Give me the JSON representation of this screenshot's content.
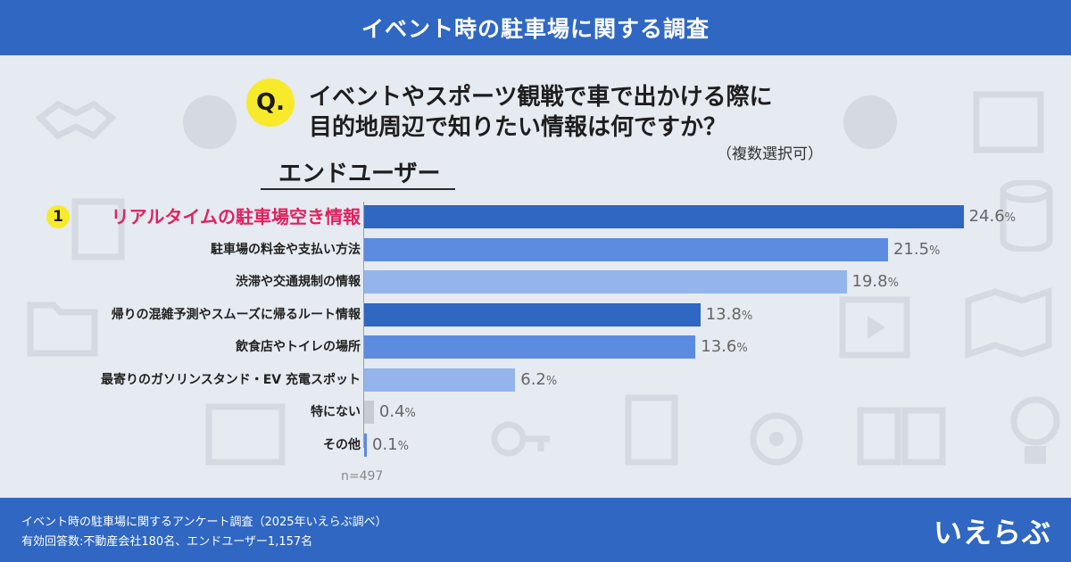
{
  "header": {
    "title": "イベント時の駐車場に関する調査"
  },
  "question": {
    "badge": "Q.",
    "line1": "イベントやスポーツ観戦で車で出かける際に",
    "line2": "目的地周辺で知りたい情報は何ですか？",
    "note": "（複数選択可）"
  },
  "section": {
    "title": "エンドユーザー"
  },
  "rank_badge": "1",
  "sample": "n=497",
  "colors": {
    "header": "#2f67c2",
    "bar_dark": "#2f67c2",
    "bar_mid": "#5b8ce0",
    "bar_light": "#93b5ec",
    "bar_gray": "#c8ccd2",
    "highlight_text": "#e0215f",
    "badge": "#f7ea2a"
  },
  "chart_data": {
    "type": "bar",
    "orientation": "horizontal",
    "categories": [
      "リアルタイムの駐車場空き情報",
      "駐車場の料金や支払い方法",
      "渋滞や交通規制の情報",
      "帰りの混雑予測やスムーズに帰るルート情報",
      "飲食店やトイレの場所",
      "最寄りのガソリンスタンド・EV 充電スポット",
      "特にない",
      "その他"
    ],
    "values": [
      24.6,
      21.5,
      19.8,
      13.8,
      13.6,
      6.2,
      0.4,
      0.1
    ],
    "value_labels": [
      "24.6",
      "21.5",
      "19.8",
      "13.8",
      "13.6",
      "6.2",
      "0.4",
      "0.1"
    ],
    "unit": "%",
    "bar_colors": [
      "dark",
      "mid",
      "light",
      "dark",
      "mid",
      "light",
      "gray",
      "mid"
    ],
    "xlim": [
      0,
      25
    ],
    "title": "",
    "xlabel": "",
    "ylabel": ""
  },
  "footer": {
    "line1": "イベント時の駐車場に関するアンケート調査（2025年いえらぶ調べ）",
    "line2": "有効回答数:不動産会社180名、エンドユーザー1,157名",
    "logo": "いえらぶ"
  }
}
